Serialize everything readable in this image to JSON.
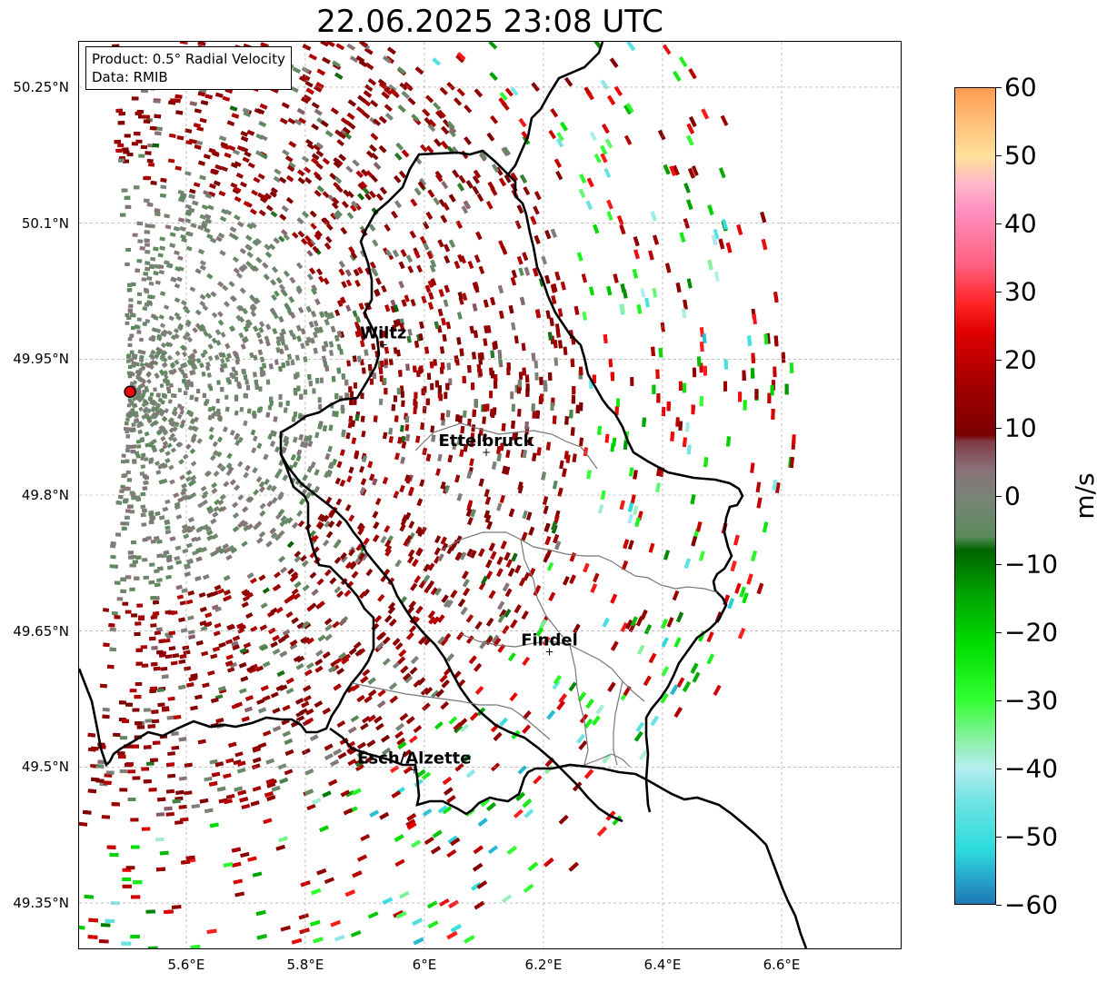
{
  "title": "22.06.2025 23:08 UTC",
  "info": {
    "product": "Product: 0.5° Radial Velocity",
    "data": "Data: RMIB"
  },
  "map_extent": {
    "lon": [
      5.42,
      6.8
    ],
    "lat": [
      49.3,
      50.3
    ]
  },
  "lat_ticks": [
    {
      "value": 50.25,
      "label": "50.25°N"
    },
    {
      "value": 50.1,
      "label": "50.1°N"
    },
    {
      "value": 49.95,
      "label": "49.95°N"
    },
    {
      "value": 49.8,
      "label": "49.8°N"
    },
    {
      "value": 49.65,
      "label": "49.65°N"
    },
    {
      "value": 49.5,
      "label": "49.5°N"
    },
    {
      "value": 49.35,
      "label": "49.35°N"
    }
  ],
  "lon_ticks": [
    {
      "value": 5.6,
      "label": "5.6°E"
    },
    {
      "value": 5.8,
      "label": "5.8°E"
    },
    {
      "value": 6.0,
      "label": "6°E"
    },
    {
      "value": 6.2,
      "label": "6.2°E"
    },
    {
      "value": 6.4,
      "label": "6.4°E"
    },
    {
      "value": 6.6,
      "label": "6.6°E"
    }
  ],
  "radar_site": {
    "lon": 5.5056,
    "lat": 49.914,
    "color": "#ff0000"
  },
  "cities": [
    {
      "name": "Wiltz",
      "lon": 5.931,
      "lat": 49.966
    },
    {
      "name": "Ettelbruck",
      "lon": 6.104,
      "lat": 49.847
    },
    {
      "name": "Findel",
      "lon": 6.21,
      "lat": 49.627
    },
    {
      "name": "Esch/Alzette",
      "lon": 5.983,
      "lat": 49.497
    }
  ],
  "colorbar": {
    "min": -60,
    "max": 60,
    "unit": "m/s",
    "ticks": [
      {
        "value": 60,
        "label": "60"
      },
      {
        "value": 50,
        "label": "50"
      },
      {
        "value": 40,
        "label": "40"
      },
      {
        "value": 30,
        "label": "30"
      },
      {
        "value": 20,
        "label": "20"
      },
      {
        "value": 10,
        "label": "10"
      },
      {
        "value": 0,
        "label": "0"
      },
      {
        "value": -10,
        "label": "−10"
      },
      {
        "value": -20,
        "label": "−20"
      },
      {
        "value": -30,
        "label": "−30"
      },
      {
        "value": -40,
        "label": "−40"
      },
      {
        "value": -50,
        "label": "−50"
      },
      {
        "value": -60,
        "label": "−60"
      }
    ],
    "stops": [
      {
        "value": -60,
        "color": "#1f78b4"
      },
      {
        "value": -56,
        "color": "#26a9cf"
      },
      {
        "value": -52,
        "color": "#2ddcdc"
      },
      {
        "value": -45,
        "color": "#6ee3e3"
      },
      {
        "value": -40,
        "color": "#b5eef0"
      },
      {
        "value": -36,
        "color": "#8cf0a8"
      },
      {
        "value": -30,
        "color": "#33ff33"
      },
      {
        "value": -22,
        "color": "#00dd00"
      },
      {
        "value": -14,
        "color": "#00a000"
      },
      {
        "value": -8,
        "color": "#006400"
      },
      {
        "value": -6,
        "color": "#5a8a5a"
      },
      {
        "value": 0,
        "color": "#7a8478"
      },
      {
        "value": 4,
        "color": "#8a7078"
      },
      {
        "value": 8,
        "color": "#803a45"
      },
      {
        "value": 9,
        "color": "#7a0000"
      },
      {
        "value": 16,
        "color": "#a00000"
      },
      {
        "value": 24,
        "color": "#e00000"
      },
      {
        "value": 28,
        "color": "#ff2020"
      },
      {
        "value": 34,
        "color": "#ff6080"
      },
      {
        "value": 42,
        "color": "#ff90c0"
      },
      {
        "value": 46,
        "color": "#ffb8c8"
      },
      {
        "value": 50,
        "color": "#ffe09a"
      },
      {
        "value": 55,
        "color": "#ffc07a"
      },
      {
        "value": 60,
        "color": "#ff9a50"
      }
    ]
  }
}
